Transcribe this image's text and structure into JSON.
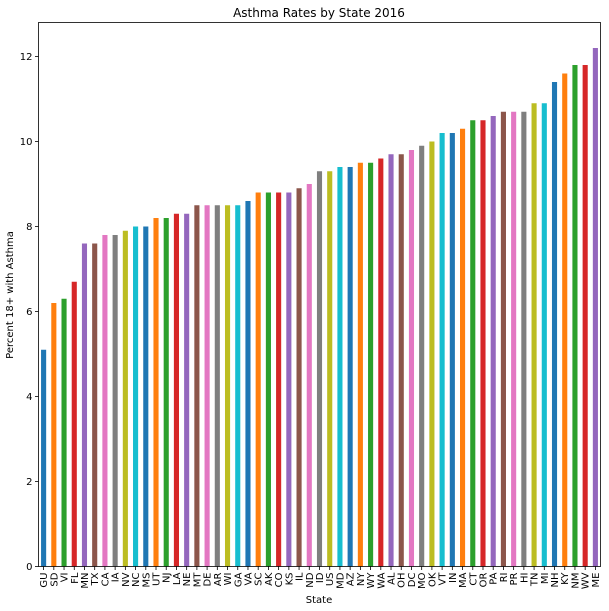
{
  "chart_data": {
    "type": "bar",
    "title": "Asthma Rates by State 2016",
    "xlabel": "State",
    "ylabel": "Percent 18+ with Asthma",
    "ylim": [
      0,
      12.8
    ],
    "yticks": [
      0,
      2,
      4,
      6,
      8,
      10,
      12
    ],
    "grid": false,
    "legend": "none",
    "palette": [
      "#1f77b4",
      "#ff7f0e",
      "#2ca02c",
      "#d62728",
      "#9467bd",
      "#8c564b",
      "#e377c2",
      "#7f7f7f",
      "#bcbd22",
      "#17becf"
    ],
    "categories": [
      "GU",
      "SD",
      "VI",
      "FL",
      "MN",
      "TX",
      "CA",
      "IA",
      "NV",
      "NC",
      "MS",
      "UT",
      "NJ",
      "LA",
      "NE",
      "MT",
      "DE",
      "AR",
      "WI",
      "GA",
      "VA",
      "SC",
      "AK",
      "CO",
      "KS",
      "IL",
      "ND",
      "ID",
      "US",
      "MD",
      "AZ",
      "NY",
      "WY",
      "WA",
      "AL",
      "OH",
      "DC",
      "MO",
      "OK",
      "VT",
      "IN",
      "MA",
      "CT",
      "OR",
      "PA",
      "RI",
      "PR",
      "HI",
      "TN",
      "MI",
      "NH",
      "KY",
      "NM",
      "WV",
      "ME"
    ],
    "values": [
      5.1,
      6.2,
      6.3,
      6.7,
      7.6,
      7.6,
      7.8,
      7.8,
      7.9,
      8.0,
      8.0,
      8.2,
      8.2,
      8.3,
      8.3,
      8.5,
      8.5,
      8.5,
      8.5,
      8.5,
      8.6,
      8.8,
      8.8,
      8.8,
      8.8,
      8.9,
      9.0,
      9.3,
      9.3,
      9.4,
      9.4,
      9.5,
      9.5,
      9.6,
      9.7,
      9.7,
      9.8,
      9.9,
      10.0,
      10.2,
      10.2,
      10.3,
      10.5,
      10.5,
      10.6,
      10.7,
      10.7,
      10.7,
      10.9,
      10.9,
      11.4,
      11.6,
      11.8,
      11.8,
      12.2
    ]
  }
}
